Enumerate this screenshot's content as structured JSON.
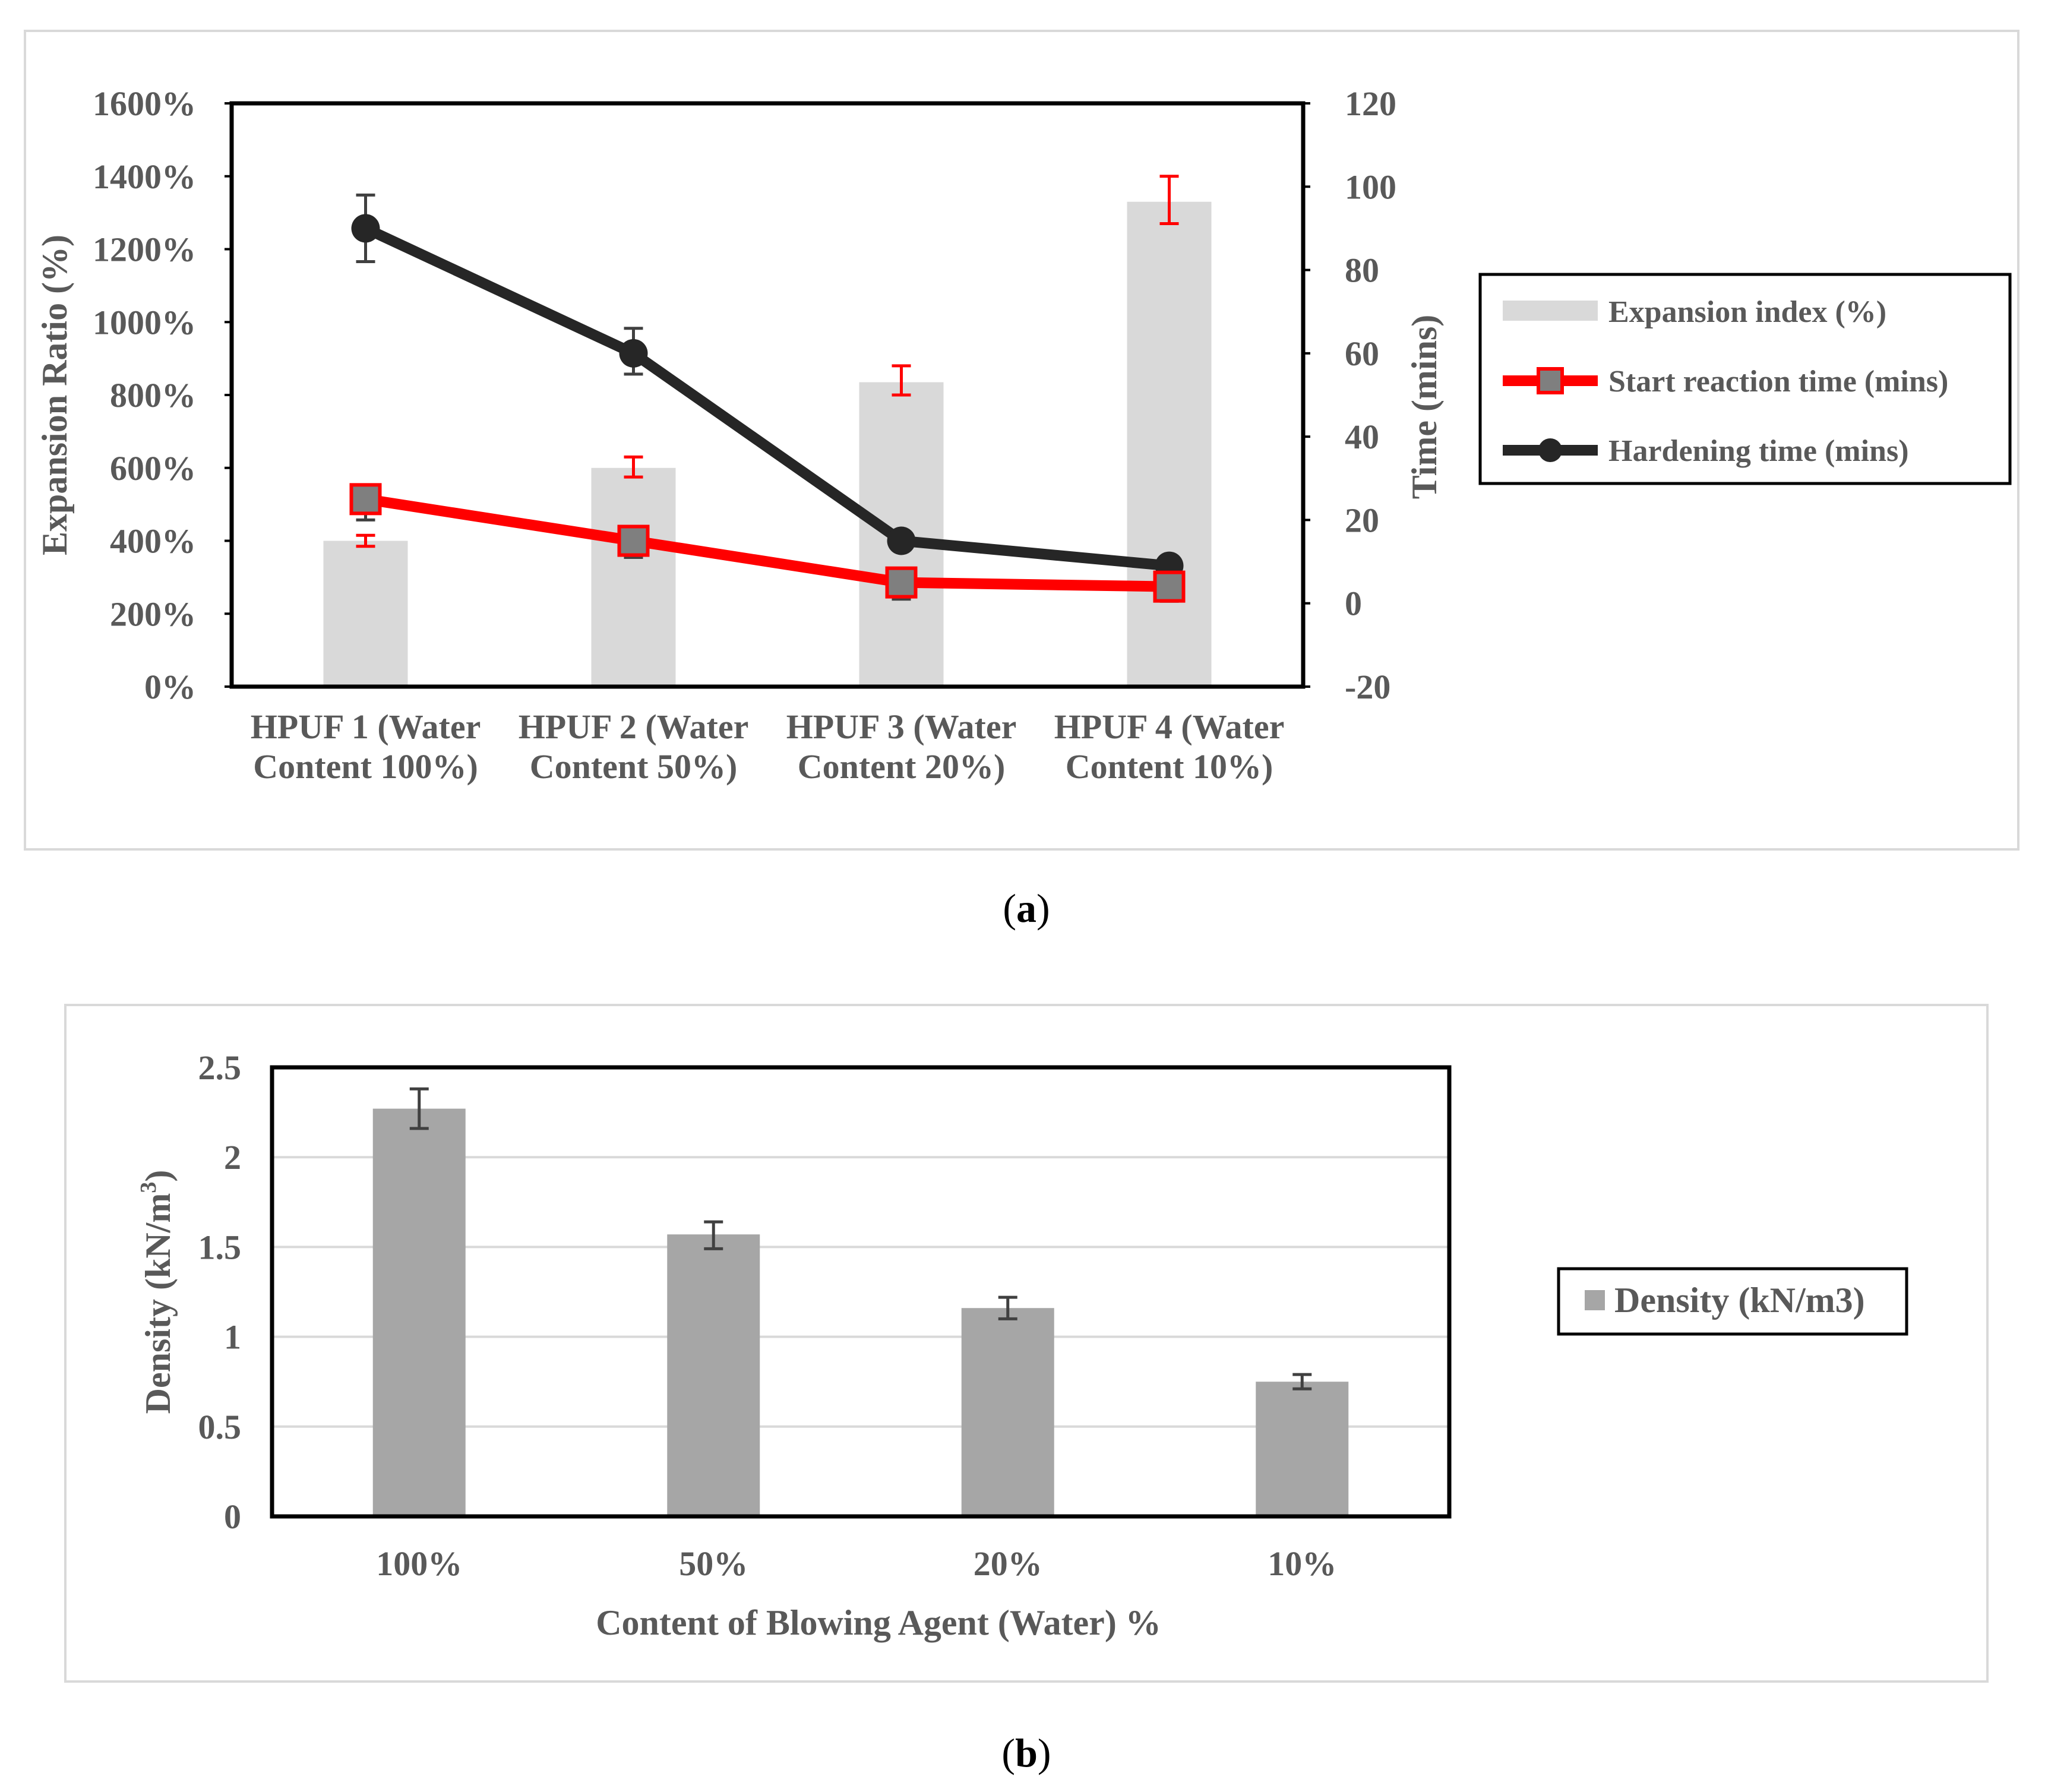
{
  "figure": {
    "caption_a_letter": "a",
    "caption_b_letter": "b"
  },
  "chart_data": [
    {
      "type": "bar+line",
      "panel": "a",
      "title": "",
      "categories": [
        [
          "HPUF 1 (Water",
          "Content 100%)"
        ],
        [
          "HPUF 2 (Water",
          "Content 50%)"
        ],
        [
          "HPUF 3 (Water",
          "Content 20%)"
        ],
        [
          "HPUF 4 (Water",
          "Content 10%)"
        ]
      ],
      "ylabel_left": "Expansion Ratio (%)",
      "ylabel_right": "Time (mins)",
      "ylim_left": [
        0,
        1600
      ],
      "yticks_left": [
        0,
        200,
        400,
        600,
        800,
        1000,
        1200,
        1400,
        1600
      ],
      "ytick_labels_left": [
        "0%",
        "200%",
        "400%",
        "600%",
        "800%",
        "1000%",
        "1200%",
        "1400%",
        "1600%"
      ],
      "ylim_right": [
        -20,
        120
      ],
      "yticks_right": [
        -20,
        0,
        20,
        40,
        60,
        80,
        100,
        120
      ],
      "ytick_labels_right": [
        "-20",
        "0",
        "20",
        "40",
        "60",
        "80",
        "100",
        "120"
      ],
      "series": [
        {
          "name": "Expansion index (%)",
          "kind": "bar",
          "axis": "left",
          "color": "#d9d9d9",
          "values": [
            400,
            600,
            835,
            1330
          ],
          "err_low": [
            385,
            575,
            800,
            1270
          ],
          "err_high": [
            415,
            630,
            880,
            1400
          ],
          "err_color": "#ff0000"
        },
        {
          "name": "Start reaction time (mins)",
          "kind": "line",
          "axis": "right",
          "color": "#ff0000",
          "marker": "square",
          "marker_fill": "#7f7f7f",
          "values": [
            25,
            15,
            5,
            4
          ],
          "err_low": [
            20,
            11,
            1,
            0.5
          ],
          "err_high": [
            28,
            18,
            8,
            6
          ],
          "err_color": "#404040"
        },
        {
          "name": "Hardening time (mins)",
          "kind": "line",
          "axis": "right",
          "color": "#262626",
          "marker": "circle",
          "marker_fill": "#262626",
          "values": [
            90,
            60,
            15,
            9
          ],
          "err_low": [
            82,
            55,
            null,
            null
          ],
          "err_high": [
            98,
            66,
            null,
            null
          ],
          "err_color": "#404040"
        }
      ],
      "legend": "right"
    },
    {
      "type": "bar",
      "panel": "b",
      "title": "",
      "categories": [
        "100%",
        "50%",
        "20%",
        "10%"
      ],
      "xlabel": "Content of Blowing Agent  (Water) %",
      "ylabel": "Density (kN/m",
      "ylabel_sup": "3",
      "ylabel_end": ")",
      "ylim": [
        0,
        2.5
      ],
      "yticks": [
        0,
        0.5,
        1,
        1.5,
        2,
        2.5
      ],
      "ytick_labels": [
        "0",
        "0.5",
        "1",
        "1.5",
        "2",
        "2.5"
      ],
      "series": [
        {
          "name": "Density (kN/m3)",
          "color": "#a6a6a6",
          "values": [
            2.27,
            1.57,
            1.16,
            0.75
          ],
          "err_low": [
            2.16,
            1.49,
            1.1,
            0.71
          ],
          "err_high": [
            2.38,
            1.64,
            1.22,
            0.79
          ],
          "err_color": "#404040"
        }
      ],
      "legend": "right"
    }
  ]
}
